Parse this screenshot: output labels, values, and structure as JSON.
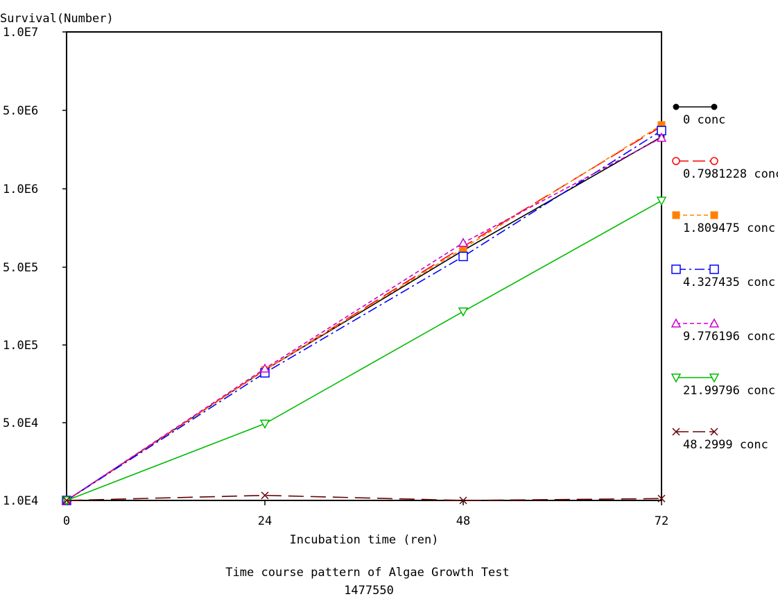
{
  "chart_data": {
    "type": "line",
    "title": "Time course pattern of Algae Growth Test",
    "subtitle": "1477550",
    "xlabel": "Incubation time (ren)",
    "ylabel": "Survival(Number)",
    "x": [
      0,
      24,
      48,
      72
    ],
    "x_ticks": [
      "0",
      "24",
      "48",
      "72"
    ],
    "y_ticks": [
      "1.0E4",
      "5.0E4",
      "1.0E5",
      "5.0E5",
      "1.0E6",
      "5.0E6",
      "1.0E7"
    ],
    "grid": false,
    "legend_position": "right",
    "series": [
      {
        "name": "0 conc",
        "values": [
          10000,
          80000,
          580000,
          2900000
        ],
        "color": "#000000",
        "marker": "filled-circle",
        "dash": "solid"
      },
      {
        "name": "0.7981228 conc",
        "values": [
          10000,
          80000,
          600000,
          3600000
        ],
        "color": "#ff0000",
        "marker": "open-circle",
        "dash": "long-dash"
      },
      {
        "name": "1.809475 conc",
        "values": [
          10000,
          80000,
          590000,
          3700000
        ],
        "color": "#ff8000",
        "marker": "filled-square",
        "dash": "dashed"
      },
      {
        "name": "4.327435 conc",
        "values": [
          10000,
          78000,
          550000,
          3300000
        ],
        "color": "#0000ff",
        "marker": "open-square",
        "dash": "dash-dot"
      },
      {
        "name": "9.776196 conc",
        "values": [
          10000,
          81000,
          620000,
          2850000
        ],
        "color": "#cc00cc",
        "marker": "open-triangle-up",
        "dash": "dashed"
      },
      {
        "name": "21.99796 conc",
        "values": [
          10000,
          49000,
          200000,
          900000
        ],
        "color": "#00bb00",
        "marker": "open-triangle-down",
        "dash": "solid"
      },
      {
        "name": "48.2999 conc",
        "values": [
          10000,
          11100,
          10000,
          10400
        ],
        "color": "#660000",
        "marker": "x",
        "dash": "long-dash"
      }
    ]
  }
}
